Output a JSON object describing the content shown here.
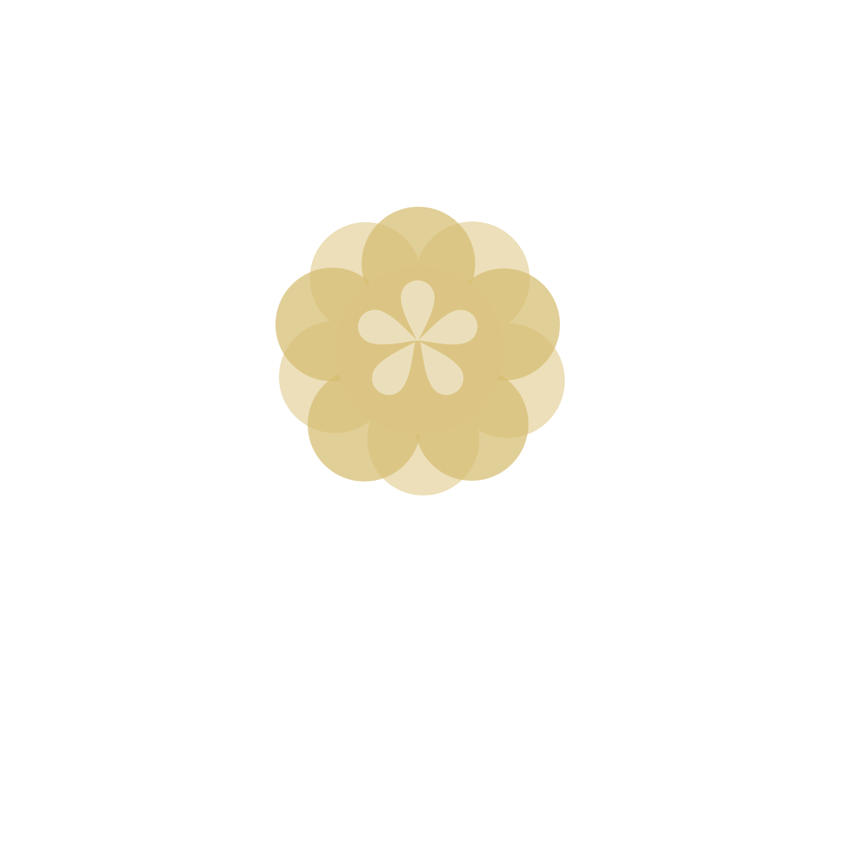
{
  "logo": {
    "icon": "flower-icon",
    "colors": {
      "back_petals": "#ecdfb9",
      "front_petals": "#dcc584",
      "center_petals": "#ebdfbb",
      "background": "#ffffff"
    }
  },
  "wordmark": {
    "text": "",
    "color": "#ffffff"
  }
}
